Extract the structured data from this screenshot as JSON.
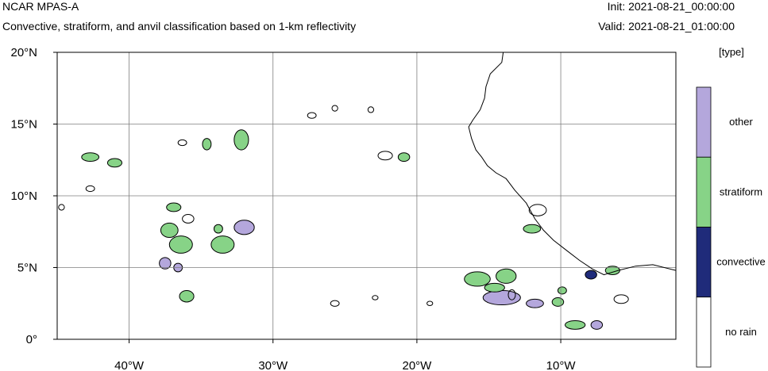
{
  "header": {
    "title": "NCAR MPAS-A",
    "subtitle": "Convective, stratiform, and anvil classification based on 1-km reflectivity",
    "init": "Init: 2021-08-21_00:00:00",
    "valid": "Valid: 2021-08-21_01:00:00"
  },
  "map": {
    "lon_range": [
      -45,
      -2
    ],
    "lat_range": [
      0,
      20
    ],
    "x_ticks": [
      {
        "lon": -40,
        "label": "40°W"
      },
      {
        "lon": -30,
        "label": "30°W"
      },
      {
        "lon": -20,
        "label": "20°W"
      },
      {
        "lon": -10,
        "label": "10°W"
      }
    ],
    "y_ticks": [
      {
        "lat": 20,
        "label": "20°N"
      },
      {
        "lat": 15,
        "label": "15°N"
      },
      {
        "lat": 10,
        "label": "10°N"
      },
      {
        "lat": 5,
        "label": "5°N"
      },
      {
        "lat": 0,
        "label": "0°"
      }
    ],
    "coastline": [
      [
        -14.0,
        20.0
      ],
      [
        -14.1,
        19.3
      ],
      [
        -14.9,
        18.5
      ],
      [
        -15.2,
        17.6
      ],
      [
        -15.3,
        16.8
      ],
      [
        -15.6,
        16.0
      ],
      [
        -16.1,
        15.3
      ],
      [
        -16.4,
        14.8
      ],
      [
        -16.2,
        14.0
      ],
      [
        -15.9,
        13.2
      ],
      [
        -15.5,
        12.7
      ],
      [
        -15.1,
        12.1
      ],
      [
        -14.5,
        11.6
      ],
      [
        -13.8,
        11.2
      ],
      [
        -13.2,
        10.4
      ],
      [
        -12.4,
        9.5
      ],
      [
        -11.8,
        8.4
      ],
      [
        -11.2,
        7.6
      ],
      [
        -10.5,
        6.9
      ],
      [
        -9.6,
        6.2
      ],
      [
        -8.7,
        5.5
      ],
      [
        -7.8,
        4.9
      ],
      [
        -7.0,
        4.5
      ],
      [
        -6.0,
        4.8
      ],
      [
        -4.8,
        5.1
      ],
      [
        -3.6,
        5.2
      ],
      [
        -2.0,
        4.8
      ]
    ],
    "cells": [
      {
        "lon": -42.7,
        "lat": 12.7,
        "rx": 0.6,
        "ry": 0.3,
        "cls": "stratiform"
      },
      {
        "lon": -41.0,
        "lat": 12.3,
        "rx": 0.5,
        "ry": 0.3,
        "cls": "stratiform"
      },
      {
        "lon": -36.3,
        "lat": 13.7,
        "rx": 0.3,
        "ry": 0.2,
        "cls": "none"
      },
      {
        "lon": -34.6,
        "lat": 13.6,
        "rx": 0.3,
        "ry": 0.4,
        "cls": "stratiform"
      },
      {
        "lon": -32.2,
        "lat": 13.9,
        "rx": 0.5,
        "ry": 0.7,
        "cls": "stratiform"
      },
      {
        "lon": -36.9,
        "lat": 9.2,
        "rx": 0.5,
        "ry": 0.3,
        "cls": "stratiform"
      },
      {
        "lon": -35.9,
        "lat": 8.4,
        "rx": 0.4,
        "ry": 0.3,
        "cls": "none"
      },
      {
        "lon": -37.2,
        "lat": 7.6,
        "rx": 0.6,
        "ry": 0.5,
        "cls": "stratiform"
      },
      {
        "lon": -36.4,
        "lat": 6.6,
        "rx": 0.8,
        "ry": 0.6,
        "cls": "stratiform"
      },
      {
        "lon": -37.5,
        "lat": 5.3,
        "rx": 0.4,
        "ry": 0.4,
        "cls": "other"
      },
      {
        "lon": -33.5,
        "lat": 6.6,
        "rx": 0.8,
        "ry": 0.6,
        "cls": "stratiform"
      },
      {
        "lon": -32.0,
        "lat": 7.8,
        "rx": 0.7,
        "ry": 0.5,
        "cls": "other"
      },
      {
        "lon": -33.8,
        "lat": 7.7,
        "rx": 0.3,
        "ry": 0.3,
        "cls": "stratiform"
      },
      {
        "lon": -36.6,
        "lat": 5.0,
        "rx": 0.3,
        "ry": 0.3,
        "cls": "other"
      },
      {
        "lon": -36.0,
        "lat": 3.0,
        "rx": 0.5,
        "ry": 0.4,
        "cls": "stratiform"
      },
      {
        "lon": -20.9,
        "lat": 12.7,
        "rx": 0.4,
        "ry": 0.3,
        "cls": "stratiform"
      },
      {
        "lon": -22.2,
        "lat": 12.8,
        "rx": 0.5,
        "ry": 0.3,
        "cls": "none"
      },
      {
        "lon": -27.3,
        "lat": 15.6,
        "rx": 0.3,
        "ry": 0.2,
        "cls": "none"
      },
      {
        "lon": -25.7,
        "lat": 16.1,
        "rx": 0.2,
        "ry": 0.2,
        "cls": "none"
      },
      {
        "lon": -23.2,
        "lat": 16.0,
        "rx": 0.2,
        "ry": 0.2,
        "cls": "none"
      },
      {
        "lon": -15.8,
        "lat": 4.2,
        "rx": 0.9,
        "ry": 0.5,
        "cls": "stratiform"
      },
      {
        "lon": -14.1,
        "lat": 2.9,
        "rx": 1.3,
        "ry": 0.5,
        "cls": "other"
      },
      {
        "lon": -13.8,
        "lat": 4.4,
        "rx": 0.7,
        "ry": 0.5,
        "cls": "stratiform"
      },
      {
        "lon": -14.6,
        "lat": 3.6,
        "rx": 0.7,
        "ry": 0.3,
        "cls": "stratiform"
      },
      {
        "lon": -11.8,
        "lat": 2.5,
        "rx": 0.6,
        "ry": 0.3,
        "cls": "other"
      },
      {
        "lon": -9.0,
        "lat": 1.0,
        "rx": 0.7,
        "ry": 0.3,
        "cls": "stratiform"
      },
      {
        "lon": -7.5,
        "lat": 1.0,
        "rx": 0.4,
        "ry": 0.3,
        "cls": "other"
      },
      {
        "lon": -6.4,
        "lat": 4.8,
        "rx": 0.5,
        "ry": 0.3,
        "cls": "stratiform"
      },
      {
        "lon": -7.9,
        "lat": 4.5,
        "rx": 0.4,
        "ry": 0.3,
        "cls": "convective"
      },
      {
        "lon": -10.2,
        "lat": 2.6,
        "rx": 0.4,
        "ry": 0.3,
        "cls": "stratiform"
      },
      {
        "lon": -12.0,
        "lat": 7.7,
        "rx": 0.6,
        "ry": 0.3,
        "cls": "stratiform"
      },
      {
        "lon": -11.6,
        "lat": 9.0,
        "rx": 0.6,
        "ry": 0.4,
        "cls": "none"
      },
      {
        "lon": -13.4,
        "lat": 3.1,
        "rx": 0.25,
        "ry": 0.35,
        "cls": "none"
      },
      {
        "lon": -5.8,
        "lat": 2.8,
        "rx": 0.5,
        "ry": 0.3,
        "cls": "none"
      },
      {
        "lon": -19.1,
        "lat": 2.5,
        "rx": 0.2,
        "ry": 0.15,
        "cls": "none"
      },
      {
        "lon": -22.9,
        "lat": 2.9,
        "rx": 0.2,
        "ry": 0.15,
        "cls": "none"
      },
      {
        "lon": -25.7,
        "lat": 2.5,
        "rx": 0.3,
        "ry": 0.2,
        "cls": "none"
      },
      {
        "lon": -44.7,
        "lat": 9.2,
        "rx": 0.2,
        "ry": 0.2,
        "cls": "none"
      },
      {
        "lon": -42.7,
        "lat": 10.5,
        "rx": 0.3,
        "ry": 0.2,
        "cls": "none"
      },
      {
        "lon": -9.9,
        "lat": 3.4,
        "rx": 0.3,
        "ry": 0.25,
        "cls": "stratiform"
      }
    ],
    "colors": {
      "no_rain": "#ffffff",
      "convective": "#1f2b7a",
      "stratiform": "#87d387",
      "other": "#b4a7dc",
      "grid": "#7f7f7f"
    }
  },
  "colorbar": {
    "unit_label": "[type]",
    "categories": [
      {
        "label": "other",
        "color": "#b4a7dc"
      },
      {
        "label": "stratiform",
        "color": "#87d387"
      },
      {
        "label": "convective",
        "color": "#1f2b7a"
      },
      {
        "label": "no rain",
        "color": "#ffffff"
      }
    ]
  }
}
